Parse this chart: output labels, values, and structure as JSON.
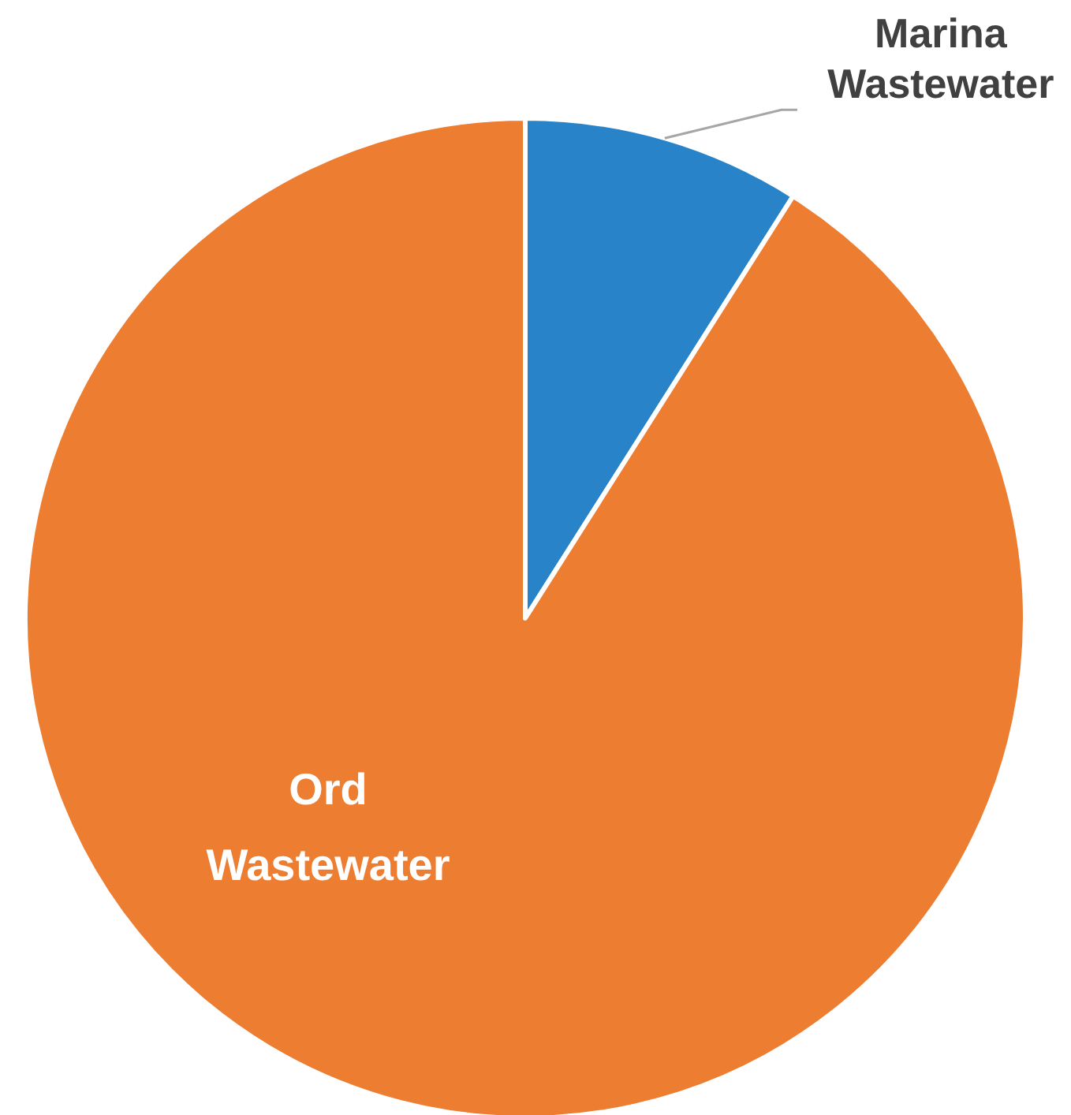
{
  "chart_data": {
    "type": "pie",
    "categories": [
      "Marina Wastewater",
      "Ord Wastewater"
    ],
    "values": [
      9,
      91
    ],
    "colors": [
      "#2983c8",
      "#ed7d31"
    ]
  }
}
